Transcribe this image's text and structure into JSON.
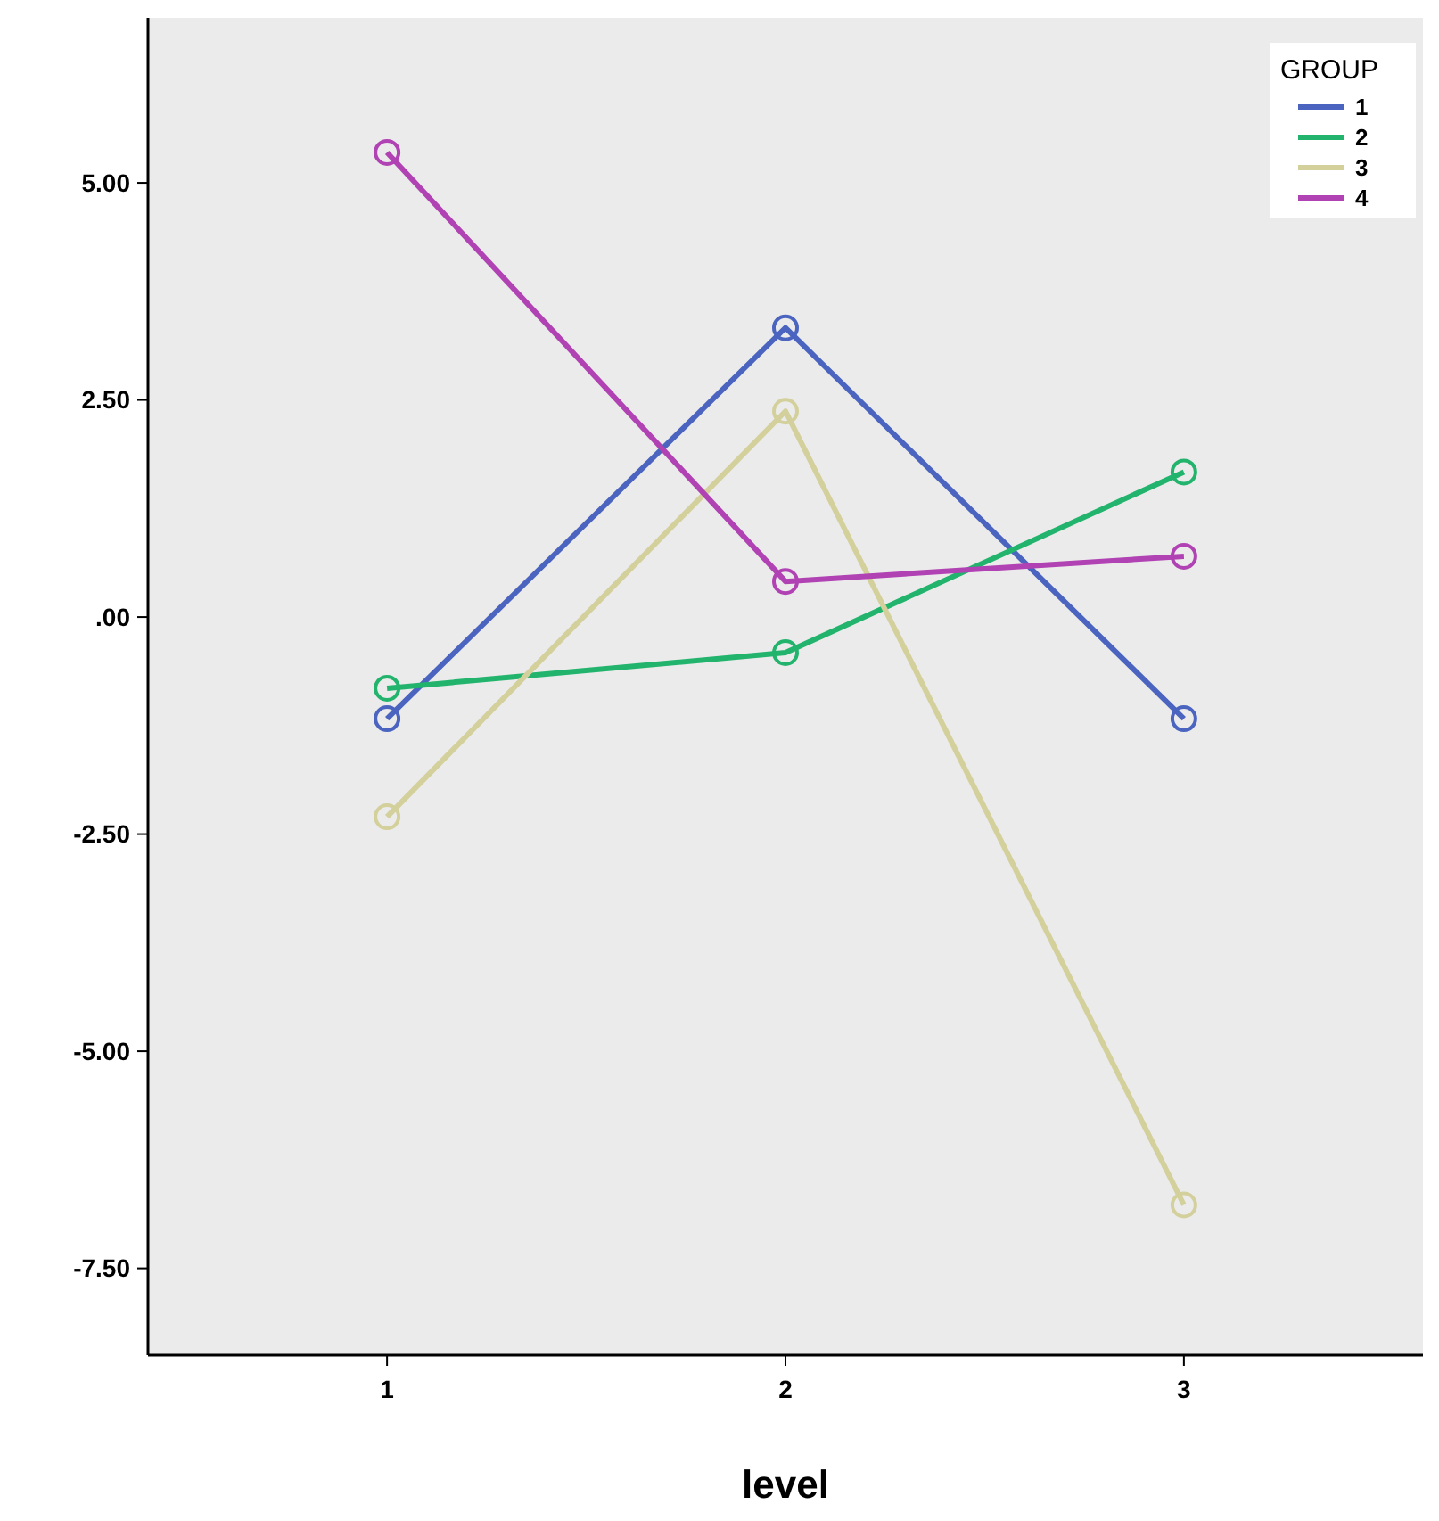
{
  "chart_data": {
    "type": "line",
    "xlabel": "level",
    "categories": [
      "1",
      "2",
      "3"
    ],
    "series": [
      {
        "name": "1",
        "color": "#4a64c0",
        "values": [
          -1.17,
          3.33,
          -1.17
        ]
      },
      {
        "name": "2",
        "color": "#22b46c",
        "values": [
          -0.82,
          -0.41,
          1.67
        ]
      },
      {
        "name": "3",
        "color": "#d3d09c",
        "values": [
          -2.3,
          2.37,
          -6.77
        ]
      },
      {
        "name": "4",
        "color": "#b042b3",
        "values": [
          5.35,
          0.41,
          0.7
        ]
      }
    ],
    "ylim": [
      -8.5,
      6.9
    ],
    "yticks": [
      {
        "value": 5,
        "label": "5.00"
      },
      {
        "value": 2.5,
        "label": "2.50"
      },
      {
        "value": 0,
        "label": ".00"
      },
      {
        "value": -2.5,
        "label": "-2.50"
      },
      {
        "value": -5,
        "label": "-5.00"
      },
      {
        "value": -7.5,
        "label": "-7.50"
      }
    ],
    "legend": "top right",
    "legend_title": "GROUP",
    "marker": "circle",
    "line_style": "solid",
    "grid": false
  }
}
